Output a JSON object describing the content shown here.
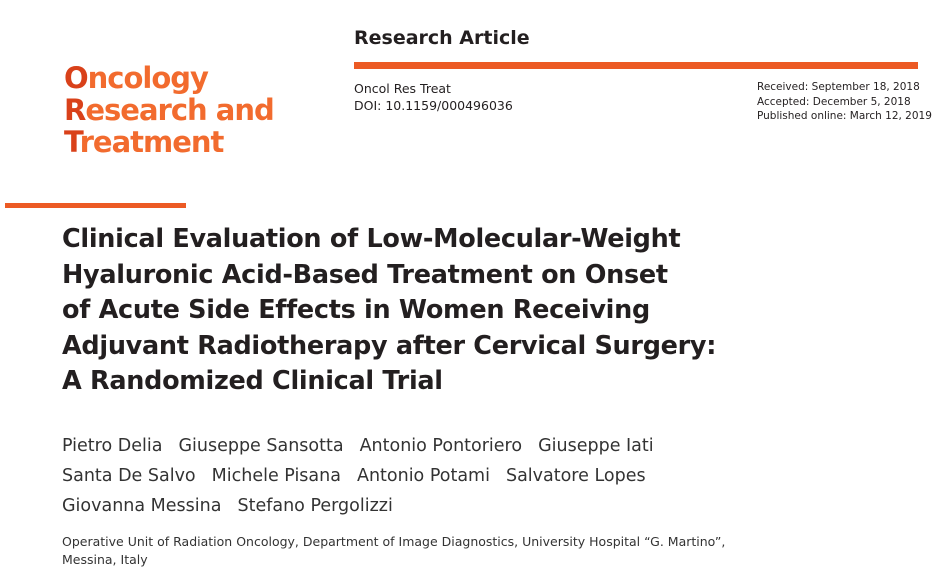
{
  "header": {
    "article_type": "Research Article",
    "journal_abbrev": "Oncol Res Treat",
    "doi": "DOI: 10.1159/000496036",
    "dates": [
      "Received: September 18, 2018",
      "Accepted: December 5, 2018",
      "Published online: March 12, 2019"
    ]
  },
  "logo": {
    "lines": [
      "Oncology",
      "Research and",
      "Treatment"
    ]
  },
  "title": {
    "lines": [
      "Clinical Evaluation of Low-Molecular-Weight",
      "Hyaluronic Acid-Based Treatment on Onset",
      "of Acute Side Effects in Women Receiving",
      "Adjuvant Radiotherapy after Cervical Surgery:",
      "A Randomized Clinical Trial"
    ]
  },
  "authors": {
    "lines": [
      [
        "Pietro Delia",
        "Giuseppe Sansotta",
        "Antonio Pontoriero",
        "Giuseppe Iati"
      ],
      [
        "Santa De Salvo",
        "Michele Pisana",
        "Antonio Potami",
        "Salvatore Lopes"
      ],
      [
        "Giovanna Messina",
        "Stefano Pergolizzi"
      ]
    ]
  },
  "affiliation": "Operative Unit of Radiation Oncology, Department of Image Diagnostics, University Hospital “G. Martino”, Messina, Italy"
}
